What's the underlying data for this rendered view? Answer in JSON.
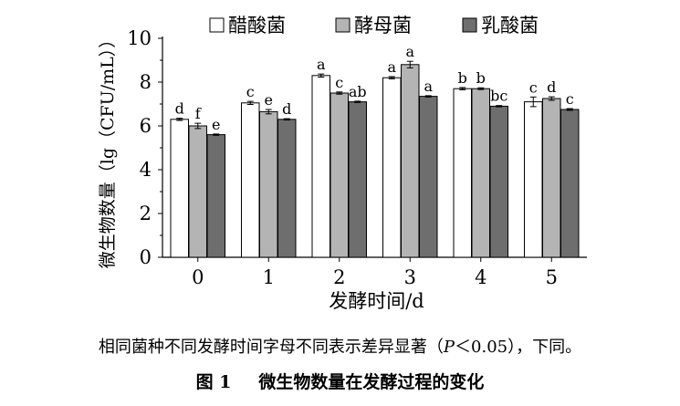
{
  "chart_data": {
    "type": "bar",
    "title": "",
    "xlabel": "发酵时间/d",
    "ylabel": "微生物数量（lg（CFU/mL））",
    "categories": [
      "0",
      "1",
      "2",
      "3",
      "4",
      "5"
    ],
    "ylim": [
      0,
      10
    ],
    "yticks": [
      "0",
      "2",
      "4",
      "6",
      "8",
      "10"
    ],
    "legend_position": "top",
    "series": [
      {
        "name": "醋酸菌",
        "color": "#ffffff",
        "values": [
          6.3,
          7.05,
          8.3,
          8.2,
          7.7,
          7.1
        ],
        "errors": [
          0.05,
          0.07,
          0.07,
          0.05,
          0.05,
          0.22
        ],
        "letters": [
          "d",
          "c",
          "a",
          "a",
          "b",
          "c"
        ]
      },
      {
        "name": "酵母菌",
        "color": "#b4b4b4",
        "values": [
          6.0,
          6.65,
          7.5,
          8.8,
          7.7,
          7.25
        ],
        "errors": [
          0.12,
          0.1,
          0.05,
          0.15,
          0.04,
          0.08
        ],
        "letters": [
          "f",
          "e",
          "c",
          "a",
          "b",
          "d"
        ]
      },
      {
        "name": "乳酸菌",
        "color": "#6e6e6e",
        "values": [
          5.6,
          6.3,
          7.1,
          7.35,
          6.9,
          6.75
        ],
        "errors": [
          0.03,
          0.03,
          0.03,
          0.03,
          0.03,
          0.04
        ],
        "letters": [
          "e",
          "d",
          "ab",
          "a",
          "bc",
          "c"
        ]
      }
    ]
  },
  "caption": {
    "note_before": "相同菌种不同发酵时间字母不同表示差异显著（",
    "note_p": "P",
    "note_after": "＜0.05），下同。",
    "figure_label": "图 1",
    "figure_title": "微生物数量在发酵过程的变化"
  }
}
